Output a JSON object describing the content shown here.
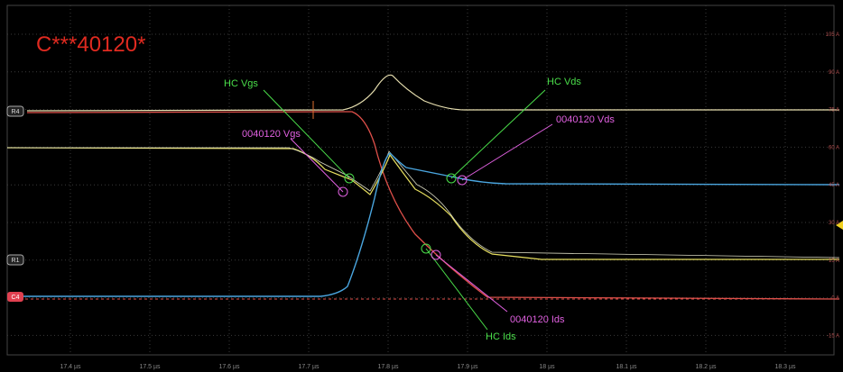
{
  "title": "C***40120*",
  "annotations": [
    "HC Vgs",
    "HC Vds",
    "0040120 Vgs",
    "0040120 Vds",
    "0040120 Ids",
    "HC Ids"
  ],
  "x_axis_labels": [
    "17.4 µs",
    "17.5 µs",
    "17.6 µs",
    "17.7 µs",
    "17.8 µs",
    "17.9 µs",
    "18 µs",
    "18.1 µs",
    "18.2 µs",
    "18.3 µs"
  ],
  "right_axis_labels": [
    "105 A",
    "90 A",
    "75 A",
    "60 A",
    "45 A",
    "30 A",
    "15 A",
    "0 A",
    "-15 A"
  ],
  "channel_labels": [
    "R4",
    "R1",
    "C4"
  ]
}
